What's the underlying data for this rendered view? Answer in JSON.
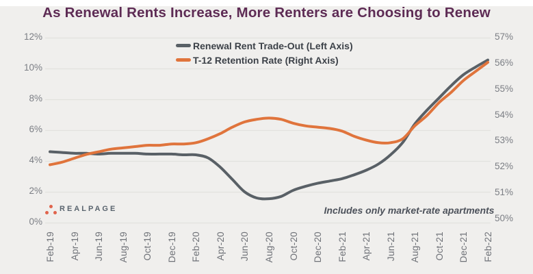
{
  "page": {
    "background": "#f0efed",
    "grid_color": "#e2e1de"
  },
  "title": {
    "text": "As Renewal Rents Increase, More Renters are Choosing to Renew",
    "color": "#5d2b54"
  },
  "legend": {
    "items": [
      {
        "label": "Renewal Rent Trade-Out (Left Axis)",
        "color": "#596066"
      },
      {
        "label": "T-12 Retention Rate (Right Axis)",
        "color": "#e0743c"
      }
    ]
  },
  "annotation": "Includes only market-rate apartments",
  "logo": {
    "text": "REALPAGE",
    "dot_color": "#e0644c",
    "text_color": "#5a646e"
  },
  "chart_data": {
    "type": "line",
    "title": "As Renewal Rents Increase, More Renters are Choosing to Renew",
    "x_frequency": "monthly",
    "months": [
      "Feb-19",
      "Mar-19",
      "Apr-19",
      "May-19",
      "Jun-19",
      "Jul-19",
      "Aug-19",
      "Sep-19",
      "Oct-19",
      "Nov-19",
      "Dec-19",
      "Jan-20",
      "Feb-20",
      "Mar-20",
      "Apr-20",
      "May-20",
      "Jun-20",
      "Jul-20",
      "Aug-20",
      "Sep-20",
      "Oct-20",
      "Nov-20",
      "Dec-20",
      "Jan-21",
      "Feb-21",
      "Mar-21",
      "Apr-21",
      "May-21",
      "Jun-21",
      "Jul-21",
      "Aug-21",
      "Sep-21",
      "Oct-21",
      "Nov-21",
      "Dec-21",
      "Jan-22",
      "Feb-22"
    ],
    "x_tick_labels": [
      "Feb-19",
      "Apr-19",
      "Jun-19",
      "Aug-19",
      "Oct-19",
      "Dec-19",
      "Feb-20",
      "Apr-20",
      "Jun-20",
      "Aug-20",
      "Oct-20",
      "Dec-20",
      "Feb-21",
      "Apr-21",
      "Jun-21",
      "Aug-21",
      "Oct-21",
      "Dec-21",
      "Feb-22"
    ],
    "left_axis": {
      "min": 0,
      "max": 12,
      "ticks": [
        "12%",
        "10%",
        "8%",
        "6%",
        "4%",
        "2%",
        "0%"
      ]
    },
    "right_axis": {
      "min": 50,
      "max": 57,
      "ticks": [
        "57%",
        "56%",
        "55%",
        "54%",
        "53%",
        "52%",
        "51%",
        "50%"
      ]
    },
    "grid": true,
    "legend_position": "top-center",
    "series": [
      {
        "name": "Renewal Rent Trade-Out (Left Axis)",
        "axis": "left",
        "color": "#596066",
        "values": [
          4.6,
          4.55,
          4.5,
          4.5,
          4.45,
          4.5,
          4.5,
          4.5,
          4.45,
          4.45,
          4.45,
          4.4,
          4.4,
          4.2,
          3.6,
          2.8,
          2.0,
          1.6,
          1.55,
          1.7,
          2.1,
          2.35,
          2.55,
          2.7,
          2.85,
          3.1,
          3.4,
          3.8,
          4.4,
          5.2,
          6.4,
          7.3,
          8.1,
          8.9,
          9.6,
          10.1,
          10.55
        ]
      },
      {
        "name": "T-12 Retention Rate (Right Axis)",
        "axis": "right",
        "color": "#e0743c",
        "values": [
          52.1,
          52.2,
          52.35,
          52.5,
          52.6,
          52.7,
          52.75,
          52.8,
          52.85,
          52.85,
          52.9,
          52.9,
          52.95,
          53.1,
          53.3,
          53.55,
          53.75,
          53.85,
          53.9,
          53.85,
          53.7,
          53.6,
          53.55,
          53.5,
          53.4,
          53.2,
          53.05,
          52.95,
          52.95,
          53.1,
          53.6,
          54.0,
          54.5,
          54.9,
          55.35,
          55.7,
          56.05
        ]
      }
    ]
  }
}
